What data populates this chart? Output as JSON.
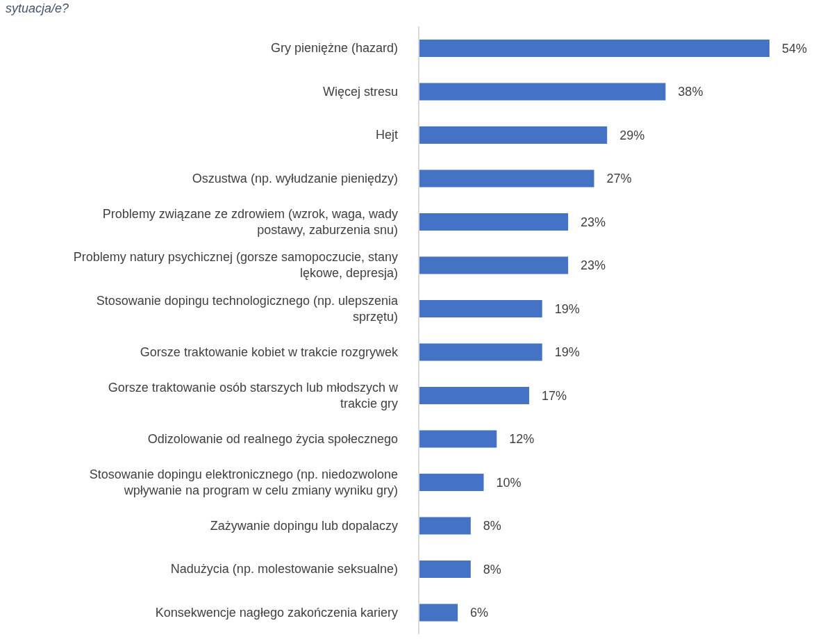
{
  "chart_data": {
    "type": "bar",
    "orientation": "horizontal",
    "tick_labels": "y",
    "title": "sytuacja/e?",
    "categories": [
      "Gry pieniężne (hazard)",
      "Więcej stresu",
      "Hejt",
      "Oszustwa (np. wyłudzanie pieniędzy)",
      "Problemy związane ze zdrowiem (wzrok, waga, wady postawy, zaburzenia snu)",
      "Problemy natury psychicznej (gorsze samopoczucie, stany lękowe, depresja)",
      "Stosowanie dopingu technologicznego (np. ulepszenia sprzętu)",
      "Gorsze traktowanie kobiet w trakcie rozgrywek",
      "Gorsze traktowanie osób starszych lub młodszych w trakcie gry",
      "Odizolowanie od realnego życia społecznego",
      "Stosowanie dopingu elektronicznego (np. niedozwolone wpływanie na program w celu zmiany wyniku gry)",
      "Zażywanie dopingu lub dopalaczy",
      "Nadużycia (np. molestowanie seksualne)",
      "Konsekwencje nagłego zakończenia kariery"
    ],
    "values": [
      54,
      38,
      29,
      27,
      23,
      23,
      19,
      19,
      17,
      12,
      10,
      8,
      8,
      6
    ],
    "value_labels": [
      "54%",
      "38%",
      "29%",
      "27%",
      "23%",
      "23%",
      "19%",
      "19%",
      "17%",
      "12%",
      "10%",
      "8%",
      "8%",
      "6%"
    ],
    "color": "#4472c4"
  }
}
